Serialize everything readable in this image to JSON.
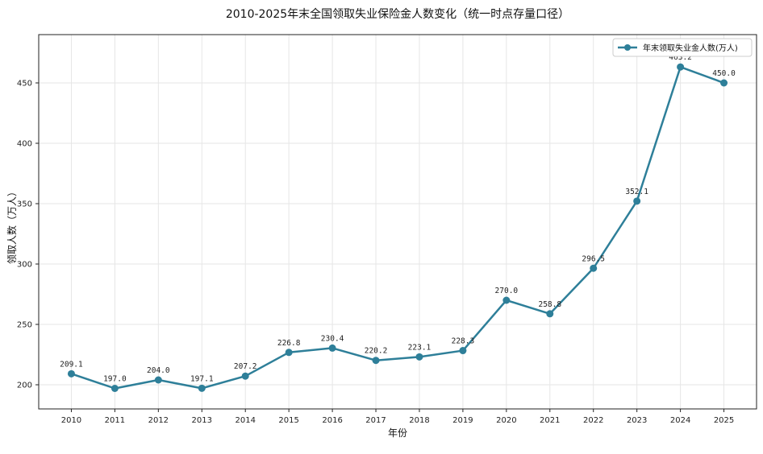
{
  "chart_data": {
    "type": "line",
    "title": "2010-2025年末全国领取失业保险金人数变化（统一时点存量口径）",
    "xlabel": "年份",
    "ylabel": "领取人数（万人）",
    "categories": [
      "2010",
      "2011",
      "2012",
      "2013",
      "2014",
      "2015",
      "2016",
      "2017",
      "2018",
      "2019",
      "2020",
      "2021",
      "2022",
      "2023",
      "2024",
      "2025"
    ],
    "series": [
      {
        "name": "年末领取失业金人数(万人)",
        "values": [
          209.1,
          197.0,
          204.0,
          197.1,
          207.2,
          226.8,
          230.4,
          220.2,
          223.1,
          228.3,
          270.0,
          258.8,
          296.5,
          352.1,
          463.2,
          450.0
        ],
        "labels": [
          "209.1",
          "197.0",
          "204.0",
          "197.1",
          "207.2",
          "226.8",
          "230.4",
          "220.2",
          "223.1",
          "228.3",
          "270.0",
          "258.8",
          "296.5",
          "352.1",
          "463.2",
          "450.0"
        ],
        "color": "#2e7f99"
      }
    ],
    "ylim": [
      180,
      490
    ],
    "yticks": [
      "200",
      "250",
      "300",
      "350",
      "400",
      "450"
    ],
    "grid": true,
    "legend_position": "top-right"
  }
}
